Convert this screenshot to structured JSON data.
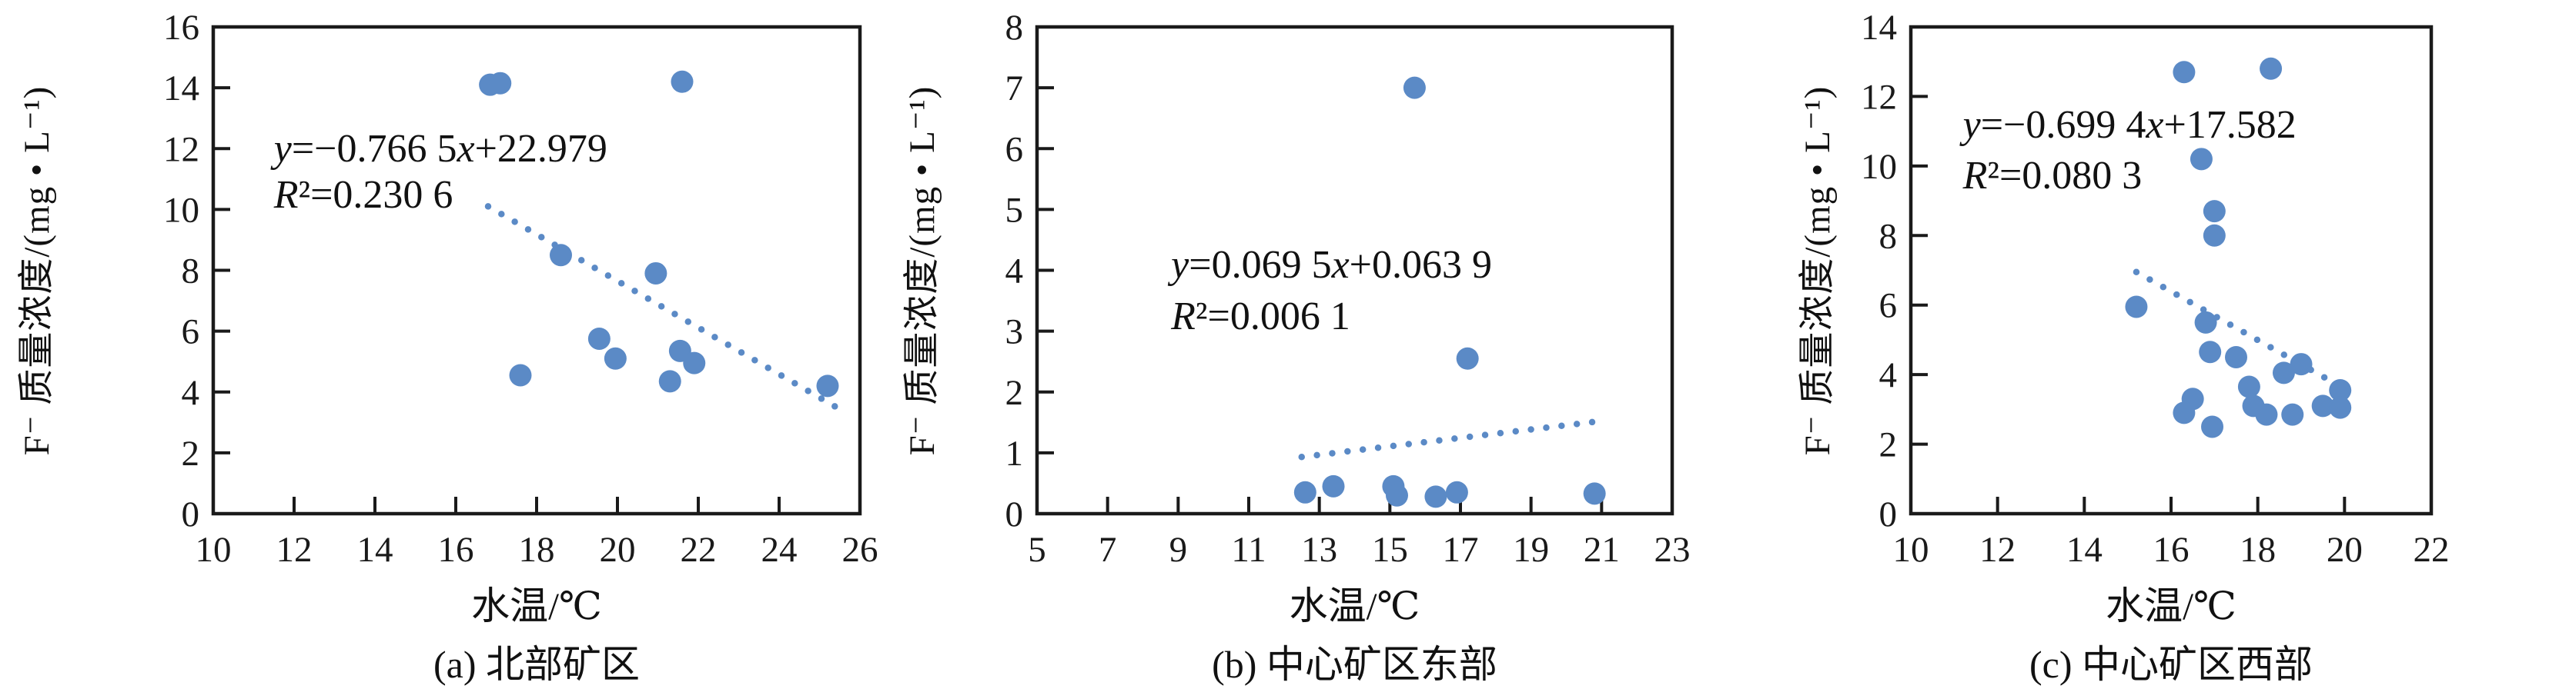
{
  "figure": {
    "background": "#ffffff",
    "marker_color": "#5b8ac6",
    "trendline_color": "#5b8ac6",
    "axis_color": "#1a1a1a"
  },
  "chart_data": [
    {
      "type": "scatter",
      "caption": "(a) 北部矿区",
      "xlabel": "水温/℃",
      "ylabel": "F⁻ 质量浓度/(mg • L⁻¹)",
      "xlim": [
        10,
        26
      ],
      "ylim": [
        0,
        16
      ],
      "xticks": [
        10,
        12,
        14,
        16,
        18,
        20,
        22,
        24,
        26
      ],
      "yticks": [
        0,
        2,
        4,
        6,
        8,
        10,
        12,
        14,
        16
      ],
      "grid": false,
      "points": [
        [
          16.85,
          14.1
        ],
        [
          17.1,
          14.15
        ],
        [
          21.6,
          14.2
        ],
        [
          18.6,
          8.5
        ],
        [
          20.95,
          7.9
        ],
        [
          17.6,
          4.55
        ],
        [
          19.55,
          5.75
        ],
        [
          19.95,
          5.1
        ],
        [
          21.55,
          5.35
        ],
        [
          21.9,
          4.95
        ],
        [
          21.3,
          4.35
        ],
        [
          25.2,
          4.2
        ]
      ],
      "trend": {
        "equation": "y=−0.766 5x+22.979",
        "r2": "R²=0.230 6",
        "slope": -0.7665,
        "intercept": 22.979,
        "x_range": [
          16.8,
          25.4
        ],
        "style": "dotted"
      },
      "annotation_pos": {
        "x": 11.5,
        "y1": 11.9,
        "y2": 10.4
      }
    },
    {
      "type": "scatter",
      "caption": "(b) 中心矿区东部",
      "xlabel": "水温/℃",
      "ylabel": "F⁻ 质量浓度/(mg • L⁻¹)",
      "xlim": [
        5,
        23
      ],
      "ylim": [
        0,
        8
      ],
      "xticks": [
        5,
        7,
        9,
        11,
        13,
        15,
        17,
        19,
        21,
        23
      ],
      "yticks": [
        0,
        1,
        2,
        3,
        4,
        5,
        6,
        7,
        8
      ],
      "grid": false,
      "points": [
        [
          15.7,
          7.0
        ],
        [
          17.2,
          2.55
        ],
        [
          12.6,
          0.35
        ],
        [
          13.4,
          0.45
        ],
        [
          15.1,
          0.45
        ],
        [
          15.2,
          0.3
        ],
        [
          16.3,
          0.28
        ],
        [
          16.9,
          0.35
        ],
        [
          20.8,
          0.33
        ]
      ],
      "trend": {
        "equation": "y=0.069 5x+0.063 9",
        "r2": "R²=0.006 1",
        "slope": 0.0695,
        "intercept": 0.0639,
        "x_range": [
          12.5,
          21.0
        ],
        "style": "dotted"
      },
      "annotation_pos": {
        "x": 8.8,
        "y1": 4.05,
        "y2": 3.2
      }
    },
    {
      "type": "scatter",
      "caption": "(c) 中心矿区西部",
      "xlabel": "水温/℃",
      "ylabel": "F⁻ 质量浓度/(mg • L⁻¹)",
      "xlim": [
        10,
        22
      ],
      "ylim": [
        0,
        14
      ],
      "xticks": [
        10,
        12,
        14,
        16,
        18,
        20,
        22
      ],
      "yticks": [
        0,
        2,
        4,
        6,
        8,
        10,
        12,
        14
      ],
      "grid": false,
      "points": [
        [
          16.3,
          12.7
        ],
        [
          18.3,
          12.8
        ],
        [
          16.7,
          10.2
        ],
        [
          17.0,
          8.7
        ],
        [
          17.0,
          8.0
        ],
        [
          15.2,
          5.95
        ],
        [
          16.8,
          5.5
        ],
        [
          16.9,
          4.65
        ],
        [
          17.5,
          4.5
        ],
        [
          18.6,
          4.05
        ],
        [
          19.0,
          4.3
        ],
        [
          17.8,
          3.65
        ],
        [
          17.9,
          3.1
        ],
        [
          16.5,
          3.3
        ],
        [
          16.3,
          2.9
        ],
        [
          16.95,
          2.5
        ],
        [
          18.2,
          2.85
        ],
        [
          18.8,
          2.85
        ],
        [
          19.5,
          3.1
        ],
        [
          19.9,
          3.55
        ],
        [
          19.9,
          3.05
        ]
      ],
      "trend": {
        "equation": "y=−0.699 4x+17.582",
        "r2": "R²=0.080 3",
        "slope": -0.6994,
        "intercept": 17.582,
        "x_range": [
          15.2,
          19.95
        ],
        "style": "dotted"
      },
      "annotation_pos": {
        "x": 11.2,
        "y1": 11.1,
        "y2": 9.65
      }
    }
  ]
}
